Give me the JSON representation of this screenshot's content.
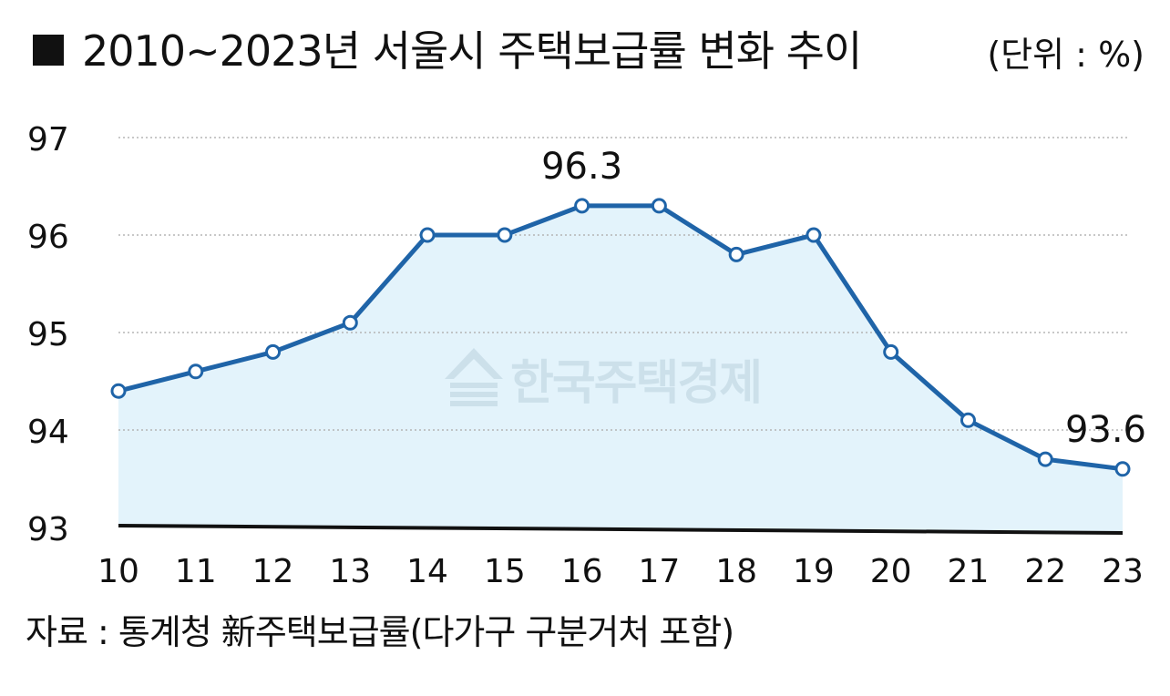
{
  "title": "2010~2023년 서울시 주택보급률 변화 추이",
  "unit": "(단위 : %)",
  "source": "자료 : 통계청 新주택보급률(다가구 구분거처 포함)",
  "watermark": "한국주택경제",
  "colors": {
    "line": "#1f64a8",
    "fill": "#e3f3fb",
    "grid": "#b5b5b5",
    "axis": "#111111",
    "marker_fill": "#ffffff"
  },
  "chart_data": {
    "type": "area",
    "x": [
      "10",
      "11",
      "12",
      "13",
      "14",
      "15",
      "16",
      "17",
      "18",
      "19",
      "20",
      "21",
      "22",
      "23"
    ],
    "series": [
      {
        "values": [
          94.4,
          94.6,
          94.8,
          95.1,
          96.0,
          96.0,
          96.3,
          96.3,
          95.8,
          96.0,
          94.8,
          94.1,
          93.7,
          93.6
        ]
      }
    ],
    "y_ticks": [
      "93",
      "94",
      "95",
      "96",
      "97"
    ],
    "ylim": [
      93,
      97
    ],
    "data_labels": [
      {
        "index": 6,
        "text": "96.3"
      },
      {
        "index": 13,
        "text": "93.6"
      }
    ],
    "grid": "horizontal dotted",
    "xlabel": "",
    "ylabel": ""
  }
}
